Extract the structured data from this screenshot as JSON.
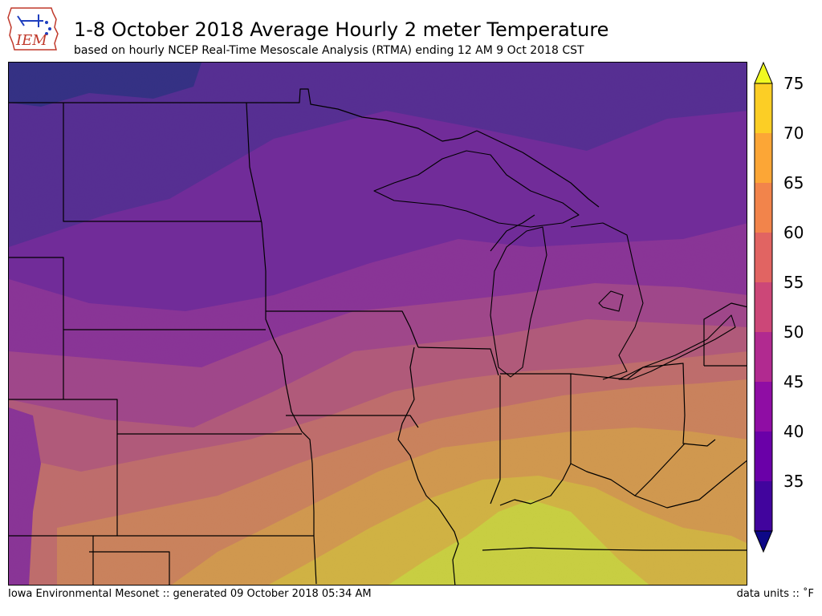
{
  "header": {
    "title": "1-8 October 2018 Average Hourly 2 meter Temperature",
    "subtitle": "based on hourly NCEP Real-Time Mesoscale Analysis (RTMA) ending 12 AM 9 Oct 2018 CST"
  },
  "logo": {
    "text": "IEM",
    "color": "#c0392b",
    "accent": "#1f3fbf"
  },
  "colorbar": {
    "ticks": [
      "75",
      "70",
      "65",
      "60",
      "55",
      "50",
      "45",
      "40",
      "35"
    ],
    "colors": [
      "#0d0887",
      "#41049d",
      "#6a00a8",
      "#8f0da4",
      "#b12a90",
      "#cc4778",
      "#e16462",
      "#f2844b",
      "#fca636",
      "#fcce25",
      "#f0f921"
    ],
    "units_label": "data units :: ˚F"
  },
  "footer": {
    "left": "Iowa Environmental Mesonet :: generated 09 October 2018 05:34 AM",
    "right": "data units :: ˚F"
  }
}
